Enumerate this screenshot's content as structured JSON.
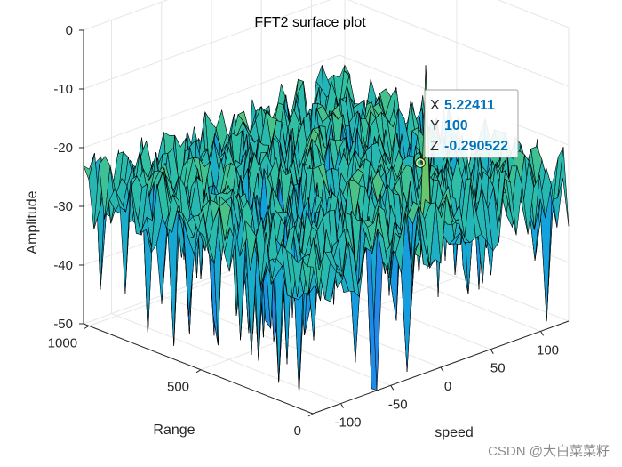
{
  "chart_data": {
    "type": "surface",
    "title": "FFT2 surface plot",
    "xlabel": "speed",
    "ylabel": "Range",
    "zlabel": "Amplitude",
    "xlim": [
      -128,
      128
    ],
    "ylim": [
      0,
      1024
    ],
    "zlim": [
      -50,
      0
    ],
    "x_ticks": [
      -100,
      -50,
      0,
      50,
      100
    ],
    "y_ticks": [
      0,
      500,
      1000
    ],
    "z_ticks": [
      0,
      -10,
      -20,
      -30,
      -40,
      -50
    ],
    "grid": true,
    "colormap": "parula",
    "noise_floor_mean": -27,
    "noise_floor_spread": 8,
    "peak": {
      "x": 5.22411,
      "y": 100,
      "z": -0.290522
    },
    "datatip": {
      "x_label": "X",
      "x_value": "5.22411",
      "y_label": "Y",
      "y_value": "100",
      "z_label": "Z",
      "z_value": "-0.290522"
    }
  },
  "watermark": "CSDN @大白菜菜籽",
  "colors": {
    "tip_value": "#0072bd",
    "mesh_edge": "#000000",
    "axis": "#262626",
    "grid": "#e6e6e6"
  }
}
